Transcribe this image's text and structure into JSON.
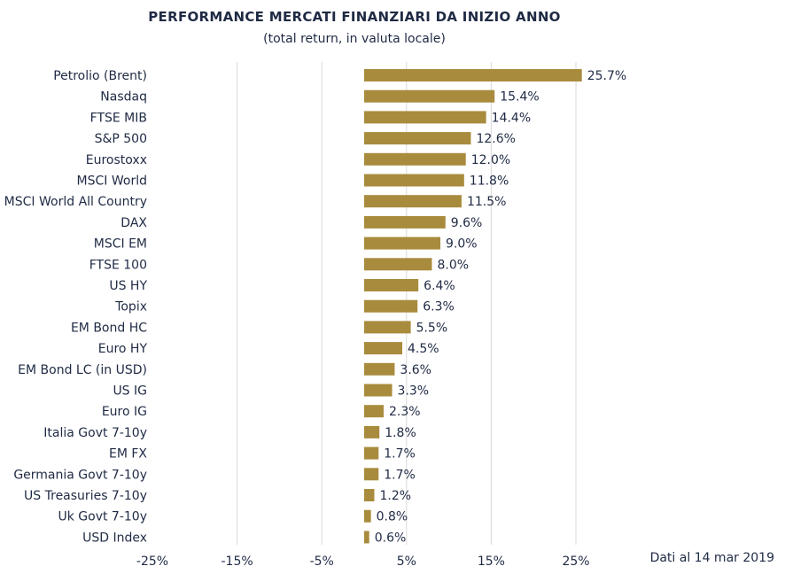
{
  "chart_data": {
    "type": "bar",
    "orientation": "horizontal",
    "title": "PERFORMANCE MERCATI FINANZIARI DA INIZIO ANNO",
    "subtitle": "(total return, in valuta locale)",
    "note": "Dati al 14 mar 2019",
    "categories": [
      "Petrolio (Brent)",
      "Nasdaq",
      "FTSE MIB",
      "S&P 500",
      "Eurostoxx",
      "MSCI World",
      "MSCI World All Country",
      "DAX",
      "MSCI EM",
      "FTSE 100",
      "US HY",
      "Topix",
      "EM Bond HC",
      "Euro HY",
      "EM Bond LC (in USD)",
      "US IG",
      "Euro IG",
      "Italia Govt 7-10y",
      "EM FX",
      "Germania Govt 7-10y",
      "US Treasuries 7-10y",
      "Uk Govt 7-10y",
      "USD Index"
    ],
    "values": [
      25.7,
      15.4,
      14.4,
      12.6,
      12.0,
      11.8,
      11.5,
      9.6,
      9.0,
      8.0,
      6.4,
      6.3,
      5.5,
      4.5,
      3.6,
      3.3,
      2.3,
      1.8,
      1.7,
      1.7,
      1.2,
      0.8,
      0.6
    ],
    "value_labels": [
      "25.7%",
      "15.4%",
      "14.4%",
      "12.6%",
      "12.0%",
      "11.8%",
      "11.5%",
      "9.6%",
      "9.0%",
      "8.0%",
      "6.4%",
      "6.3%",
      "5.5%",
      "4.5%",
      "3.6%",
      "3.3%",
      "2.3%",
      "1.8%",
      "1.7%",
      "1.7%",
      "1.2%",
      "0.8%",
      "0.6%"
    ],
    "xlim": [
      -25,
      25
    ],
    "xticks": [
      -25,
      -15,
      -5,
      5,
      15,
      25
    ],
    "xtick_labels": [
      "-25%",
      "-15%",
      "-5%",
      "5%",
      "15%",
      "25%"
    ],
    "grid": "vertical",
    "legend": "none",
    "colors": {
      "bar": "#a88b3d",
      "grid": "#d9d9d9",
      "text": "#1f2a44"
    }
  }
}
